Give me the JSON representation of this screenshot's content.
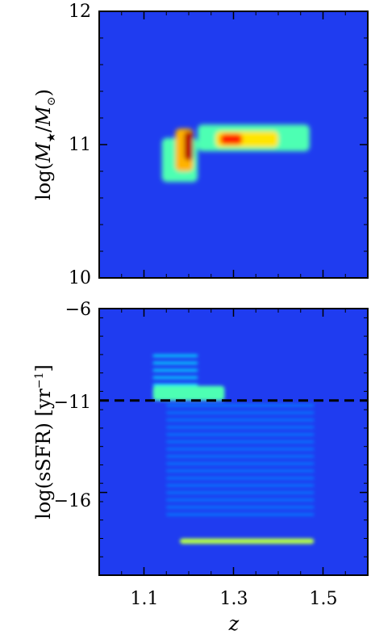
{
  "chart_data": [
    {
      "type": "heatmap",
      "panel": "top",
      "ylabel_parts": [
        "log(",
        "M",
        "★",
        "/",
        "M",
        "⊙",
        ")"
      ],
      "xlim": [
        1.0,
        1.6
      ],
      "ylim": [
        10,
        12
      ],
      "yticks": [
        10,
        11,
        12
      ],
      "ytick_labels": [
        "10",
        "11",
        "12"
      ],
      "colormap": "jet",
      "background_color": "#1f3cf0",
      "density": [
        {
          "z_min": 1.14,
          "z_max": 1.22,
          "m_min": 10.72,
          "m_max": 11.05,
          "level": 0.45
        },
        {
          "z_min": 1.17,
          "z_max": 1.21,
          "m_min": 10.8,
          "m_max": 11.12,
          "level": 0.7
        },
        {
          "z_min": 1.19,
          "z_max": 1.21,
          "m_min": 10.88,
          "m_max": 11.1,
          "level": 0.95
        },
        {
          "z_min": 1.22,
          "z_max": 1.47,
          "m_min": 10.95,
          "m_max": 11.15,
          "level": 0.45
        },
        {
          "z_min": 1.26,
          "z_max": 1.4,
          "m_min": 10.98,
          "m_max": 11.1,
          "level": 0.65
        },
        {
          "z_min": 1.27,
          "z_max": 1.32,
          "m_min": 11.0,
          "m_max": 11.08,
          "level": 0.85
        }
      ]
    },
    {
      "type": "heatmap",
      "panel": "bottom",
      "ylabel_parts": [
        "log(sSFR) [yr",
        "−1",
        "]"
      ],
      "xlabel": "z",
      "xlim": [
        1.0,
        1.6
      ],
      "ylim": [
        -20.5,
        -6
      ],
      "xticks": [
        1.1,
        1.3,
        1.5
      ],
      "xtick_labels": [
        "1.1",
        "1.3",
        "1.5"
      ],
      "yticks": [
        -6,
        -11,
        -16
      ],
      "ytick_labels": [
        "−6",
        "−11",
        "−16"
      ],
      "reference_line": {
        "y": -11,
        "style": "dashed",
        "color": "#000000"
      },
      "colormap": "jet",
      "background_color": "#1f3cf0",
      "density": [
        {
          "z_min": 1.12,
          "z_max": 1.22,
          "s_min": -10.8,
          "s_max": -8.5,
          "level": 0.35
        },
        {
          "z_min": 1.12,
          "z_max": 1.28,
          "s_min": -11.0,
          "s_max": -10.2,
          "level": 0.45
        },
        {
          "z_min": 1.15,
          "z_max": 1.48,
          "s_min": -17.5,
          "s_max": -11.2,
          "level": 0.25
        },
        {
          "z_min": 1.18,
          "z_max": 1.48,
          "s_min": -18.8,
          "s_max": -18.5,
          "level": 0.55
        }
      ]
    }
  ]
}
